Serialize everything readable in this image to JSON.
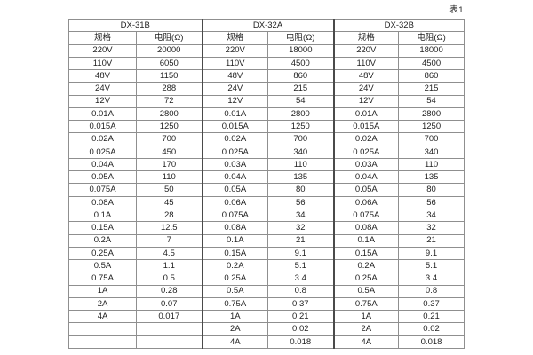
{
  "page": {
    "caption": "表1",
    "colors": {
      "background": "#ffffff",
      "text": "#222222",
      "grid_line": "#8f8f8f",
      "group_separator": "#4a4a4a"
    }
  },
  "table": {
    "groups": [
      {
        "name": "DX-31B"
      },
      {
        "name": "DX-32A"
      },
      {
        "name": "DX-32B"
      }
    ],
    "column_headers": [
      "规格",
      "电阻(Ω)"
    ],
    "rows": [
      [
        "220V",
        "20000",
        "220V",
        "18000",
        "220V",
        "18000"
      ],
      [
        "110V",
        "6050",
        "110V",
        "4500",
        "110V",
        "4500"
      ],
      [
        "48V",
        "1150",
        "48V",
        "860",
        "48V",
        "860"
      ],
      [
        "24V",
        "288",
        "24V",
        "215",
        "24V",
        "215"
      ],
      [
        "12V",
        "72",
        "12V",
        "54",
        "12V",
        "54"
      ],
      [
        "0.01A",
        "2800",
        "0.01A",
        "2800",
        "0.01A",
        "2800"
      ],
      [
        "0.015A",
        "1250",
        "0.015A",
        "1250",
        "0.015A",
        "1250"
      ],
      [
        "0.02A",
        "700",
        "0.02A",
        "700",
        "0.02A",
        "700"
      ],
      [
        "0.025A",
        "450",
        "0.025A",
        "340",
        "0.025A",
        "340"
      ],
      [
        "0.04A",
        "170",
        "0.03A",
        "110",
        "0.03A",
        "110"
      ],
      [
        "0.05A",
        "110",
        "0.04A",
        "135",
        "0.04A",
        "135"
      ],
      [
        "0.075A",
        "50",
        "0.05A",
        "80",
        "0.05A",
        "80"
      ],
      [
        "0.08A",
        "45",
        "0.06A",
        "56",
        "0.06A",
        "56"
      ],
      [
        "0.1A",
        "28",
        "0.075A",
        "34",
        "0.075A",
        "34"
      ],
      [
        "0.15A",
        "12.5",
        "0.08A",
        "32",
        "0.08A",
        "32"
      ],
      [
        "0.2A",
        "7",
        "0.1A",
        "21",
        "0.1A",
        "21"
      ],
      [
        "0.25A",
        "4.5",
        "0.15A",
        "9.1",
        "0.15A",
        "9.1"
      ],
      [
        "0.5A",
        "1.1",
        "0.2A",
        "5.1",
        "0.2A",
        "5.1"
      ],
      [
        "0.75A",
        "0.5",
        "0.25A",
        "3.4",
        "0.25A",
        "3.4"
      ],
      [
        "1A",
        "0.28",
        "0.5A",
        "0.8",
        "0.5A",
        "0.8"
      ],
      [
        "2A",
        "0.07",
        "0.75A",
        "0.37",
        "0.75A",
        "0.37"
      ],
      [
        "4A",
        "0.017",
        "1A",
        "0.21",
        "1A",
        "0.21"
      ],
      [
        "",
        "",
        "2A",
        "0.02",
        "2A",
        "0.02"
      ],
      [
        "",
        "",
        "4A",
        "0.018",
        "4A",
        "0.018"
      ]
    ]
  }
}
